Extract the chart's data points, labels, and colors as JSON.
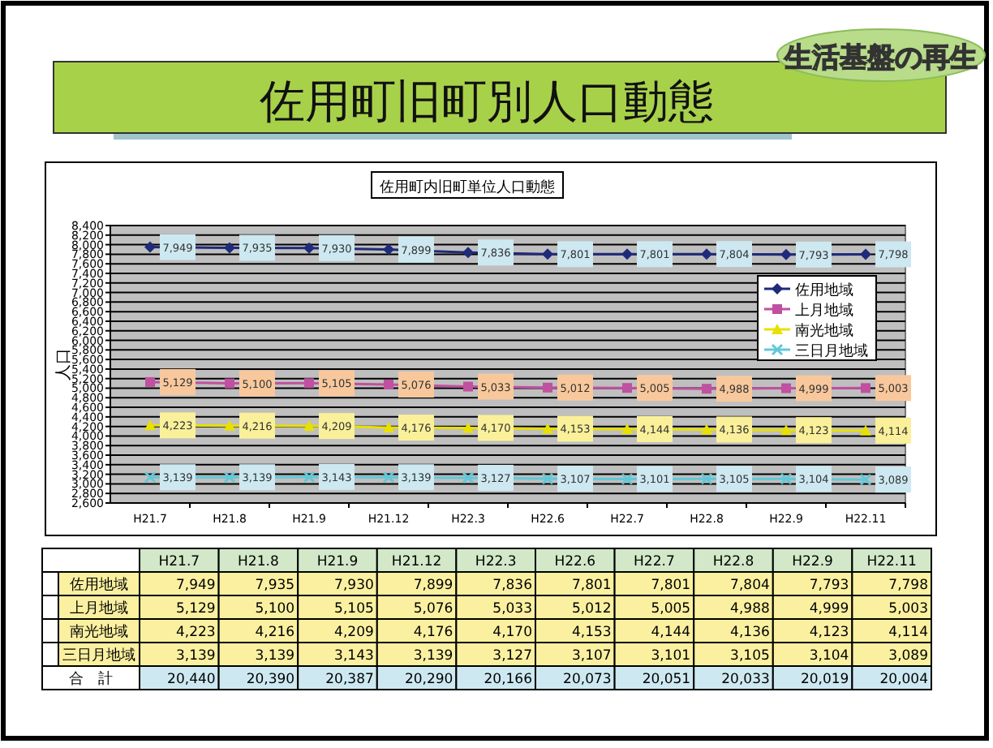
{
  "chart_data": {
    "type": "line",
    "title": "佐用町旧町別人口動態",
    "subtitle": "佐用町内旧町単位人口動態",
    "ylabel": "人口",
    "annotations": [
      "生活基盤の再生",
      "合　計"
    ],
    "categories": [
      "H21.7",
      "H21.8",
      "H21.9",
      "H21.12",
      "H22.3",
      "H22.6",
      "H22.7",
      "H22.8",
      "H22.9",
      "H22.11"
    ],
    "series": [
      {
        "name": "佐用地域",
        "color": "#1f2a7a",
        "marker": "diamond",
        "values": [
          7949,
          7935,
          7930,
          7899,
          7836,
          7801,
          7801,
          7804,
          7793,
          7798
        ],
        "value_labels": [
          "7,949",
          "7,935",
          "7,930",
          "7,899",
          "7,836",
          "7,801",
          "7,801",
          "7,804",
          "7,793",
          "7,798"
        ]
      },
      {
        "name": "上月地域",
        "color": "#c050a0",
        "marker": "square",
        "values": [
          5129,
          5100,
          5105,
          5076,
          5033,
          5012,
          5005,
          4988,
          4999,
          5003
        ],
        "value_labels": [
          "5,129",
          "5,100",
          "5,105",
          "5,076",
          "5,033",
          "5,012",
          "5,005",
          "4,988",
          "4,999",
          "5,003"
        ]
      },
      {
        "name": "南光地域",
        "color": "#e8e000",
        "marker": "triangle",
        "values": [
          4223,
          4216,
          4209,
          4176,
          4170,
          4153,
          4144,
          4136,
          4123,
          4114
        ],
        "value_labels": [
          "4,223",
          "4,216",
          "4,209",
          "4,176",
          "4,170",
          "4,153",
          "4,144",
          "4,136",
          "4,123",
          "4,114"
        ]
      },
      {
        "name": "三日月地域",
        "color": "#60c8d8",
        "marker": "cross",
        "values": [
          3139,
          3139,
          3143,
          3139,
          3127,
          3107,
          3101,
          3105,
          3104,
          3089
        ],
        "value_labels": [
          "3,139",
          "3,139",
          "3,143",
          "3,139",
          "3,127",
          "3,107",
          "3,101",
          "3,105",
          "3,104",
          "3,089"
        ]
      }
    ],
    "totals": [
      "20,440",
      "20,390",
      "20,387",
      "20,290",
      "20,166",
      "20,073",
      "20,051",
      "20,033",
      "20,019",
      "20,004"
    ],
    "ylim": [
      2600,
      8400
    ],
    "yticks": [
      {
        "value": 2600,
        "label": "2,600"
      },
      {
        "value": 2800,
        "label": "2,800"
      },
      {
        "value": 3000,
        "label": "3,000"
      },
      {
        "value": 3200,
        "label": "3,200"
      },
      {
        "value": 3400,
        "label": "3,400"
      },
      {
        "value": 3600,
        "label": "3,600"
      },
      {
        "value": 3800,
        "label": "3,800"
      },
      {
        "value": 4000,
        "label": "4,000"
      },
      {
        "value": 4200,
        "label": "4,200"
      },
      {
        "value": 4400,
        "label": "4,400"
      },
      {
        "value": 4600,
        "label": "4,600"
      },
      {
        "value": 4800,
        "label": "4,800"
      },
      {
        "value": 5000,
        "label": "5,000"
      },
      {
        "value": 5200,
        "label": "5,200"
      },
      {
        "value": 5400,
        "label": "5,400"
      },
      {
        "value": 5600,
        "label": "5,600"
      },
      {
        "value": 5800,
        "label": "5,800"
      },
      {
        "value": 6000,
        "label": "6,000"
      },
      {
        "value": 6200,
        "label": "6,200"
      },
      {
        "value": 6400,
        "label": "6,400"
      },
      {
        "value": 6600,
        "label": "6,600"
      },
      {
        "value": 6800,
        "label": "6,800"
      },
      {
        "value": 7000,
        "label": "7,000"
      },
      {
        "value": 7200,
        "label": "7,200"
      },
      {
        "value": 7400,
        "label": "7,400"
      },
      {
        "value": 7600,
        "label": "7,600"
      },
      {
        "value": 7800,
        "label": "7,800"
      },
      {
        "value": 8000,
        "label": "8,000"
      },
      {
        "value": 8200,
        "label": "8,200"
      },
      {
        "value": 8400,
        "label": "8,400"
      }
    ],
    "grid": "y",
    "legend": "top right",
    "line_style": "solid"
  }
}
